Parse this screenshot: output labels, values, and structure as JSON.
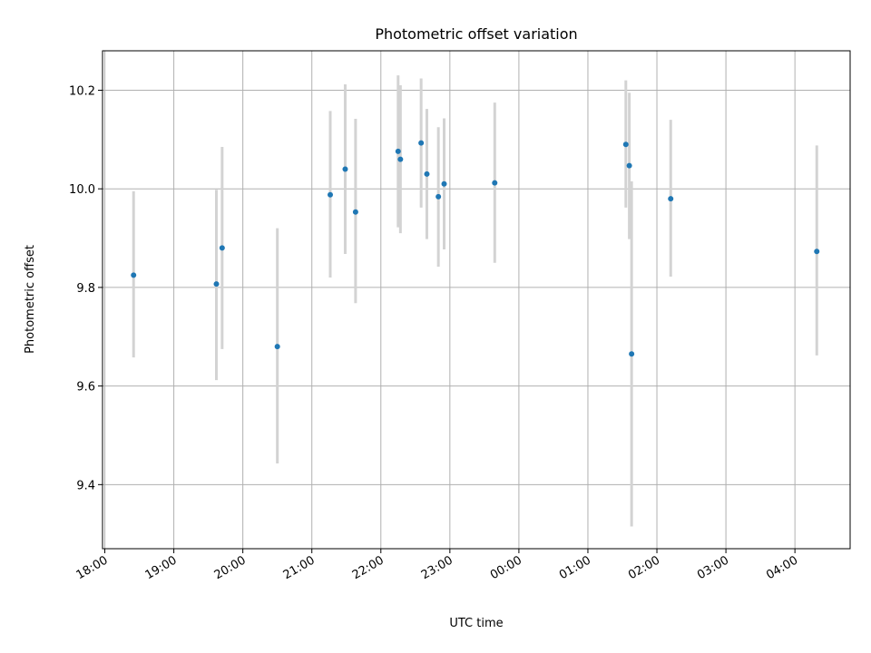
{
  "chart_data": {
    "type": "scatter",
    "title": "Photometric offset variation",
    "xlabel": "UTC time",
    "ylabel": "Photometric offset",
    "grid": true,
    "x_tick_labels": [
      "18:00",
      "19:00",
      "20:00",
      "21:00",
      "22:00",
      "23:00",
      "00:00",
      "01:00",
      "02:00",
      "03:00",
      "04:00"
    ],
    "y_tick_labels": [
      "9.4",
      "9.6",
      "9.8",
      "10.0",
      "10.2"
    ],
    "y_ticks": [
      9.4,
      9.6,
      9.8,
      10.0,
      10.2
    ],
    "ylim": [
      9.27,
      10.28
    ],
    "xlim": [
      "17:58",
      "04:48"
    ],
    "colors": {
      "point": "#1f77b4",
      "errorbar": "#d3d3d3"
    },
    "points": [
      {
        "t": "18:25",
        "y": 9.825,
        "lo": 9.658,
        "hi": 9.995
      },
      {
        "t": "19:37",
        "y": 9.807,
        "lo": 9.612,
        "hi": 9.998
      },
      {
        "t": "19:42",
        "y": 9.88,
        "lo": 9.675,
        "hi": 10.085
      },
      {
        "t": "20:30",
        "y": 9.68,
        "lo": 9.443,
        "hi": 9.92
      },
      {
        "t": "21:16",
        "y": 9.988,
        "lo": 9.82,
        "hi": 10.158
      },
      {
        "t": "21:29",
        "y": 10.04,
        "lo": 9.868,
        "hi": 10.212
      },
      {
        "t": "21:38",
        "y": 9.953,
        "lo": 9.768,
        "hi": 10.142
      },
      {
        "t": "22:15",
        "y": 10.076,
        "lo": 9.922,
        "hi": 10.23
      },
      {
        "t": "22:17",
        "y": 10.06,
        "lo": 9.91,
        "hi": 10.21
      },
      {
        "t": "22:35",
        "y": 10.093,
        "lo": 9.962,
        "hi": 10.224
      },
      {
        "t": "22:40",
        "y": 10.03,
        "lo": 9.898,
        "hi": 10.162
      },
      {
        "t": "22:50",
        "y": 9.984,
        "lo": 9.842,
        "hi": 10.125
      },
      {
        "t": "22:55",
        "y": 10.01,
        "lo": 9.877,
        "hi": 10.143
      },
      {
        "t": "23:39",
        "y": 10.012,
        "lo": 9.85,
        "hi": 10.175
      },
      {
        "t": "01:33",
        "y": 10.09,
        "lo": 9.962,
        "hi": 10.22
      },
      {
        "t": "01:36",
        "y": 10.047,
        "lo": 9.898,
        "hi": 10.195
      },
      {
        "t": "01:38",
        "y": 9.665,
        "lo": 9.315,
        "hi": 10.015
      },
      {
        "t": "02:12",
        "y": 9.98,
        "lo": 9.822,
        "hi": 10.14
      },
      {
        "t": "04:19",
        "y": 9.873,
        "lo": 9.662,
        "hi": 10.088
      }
    ]
  }
}
